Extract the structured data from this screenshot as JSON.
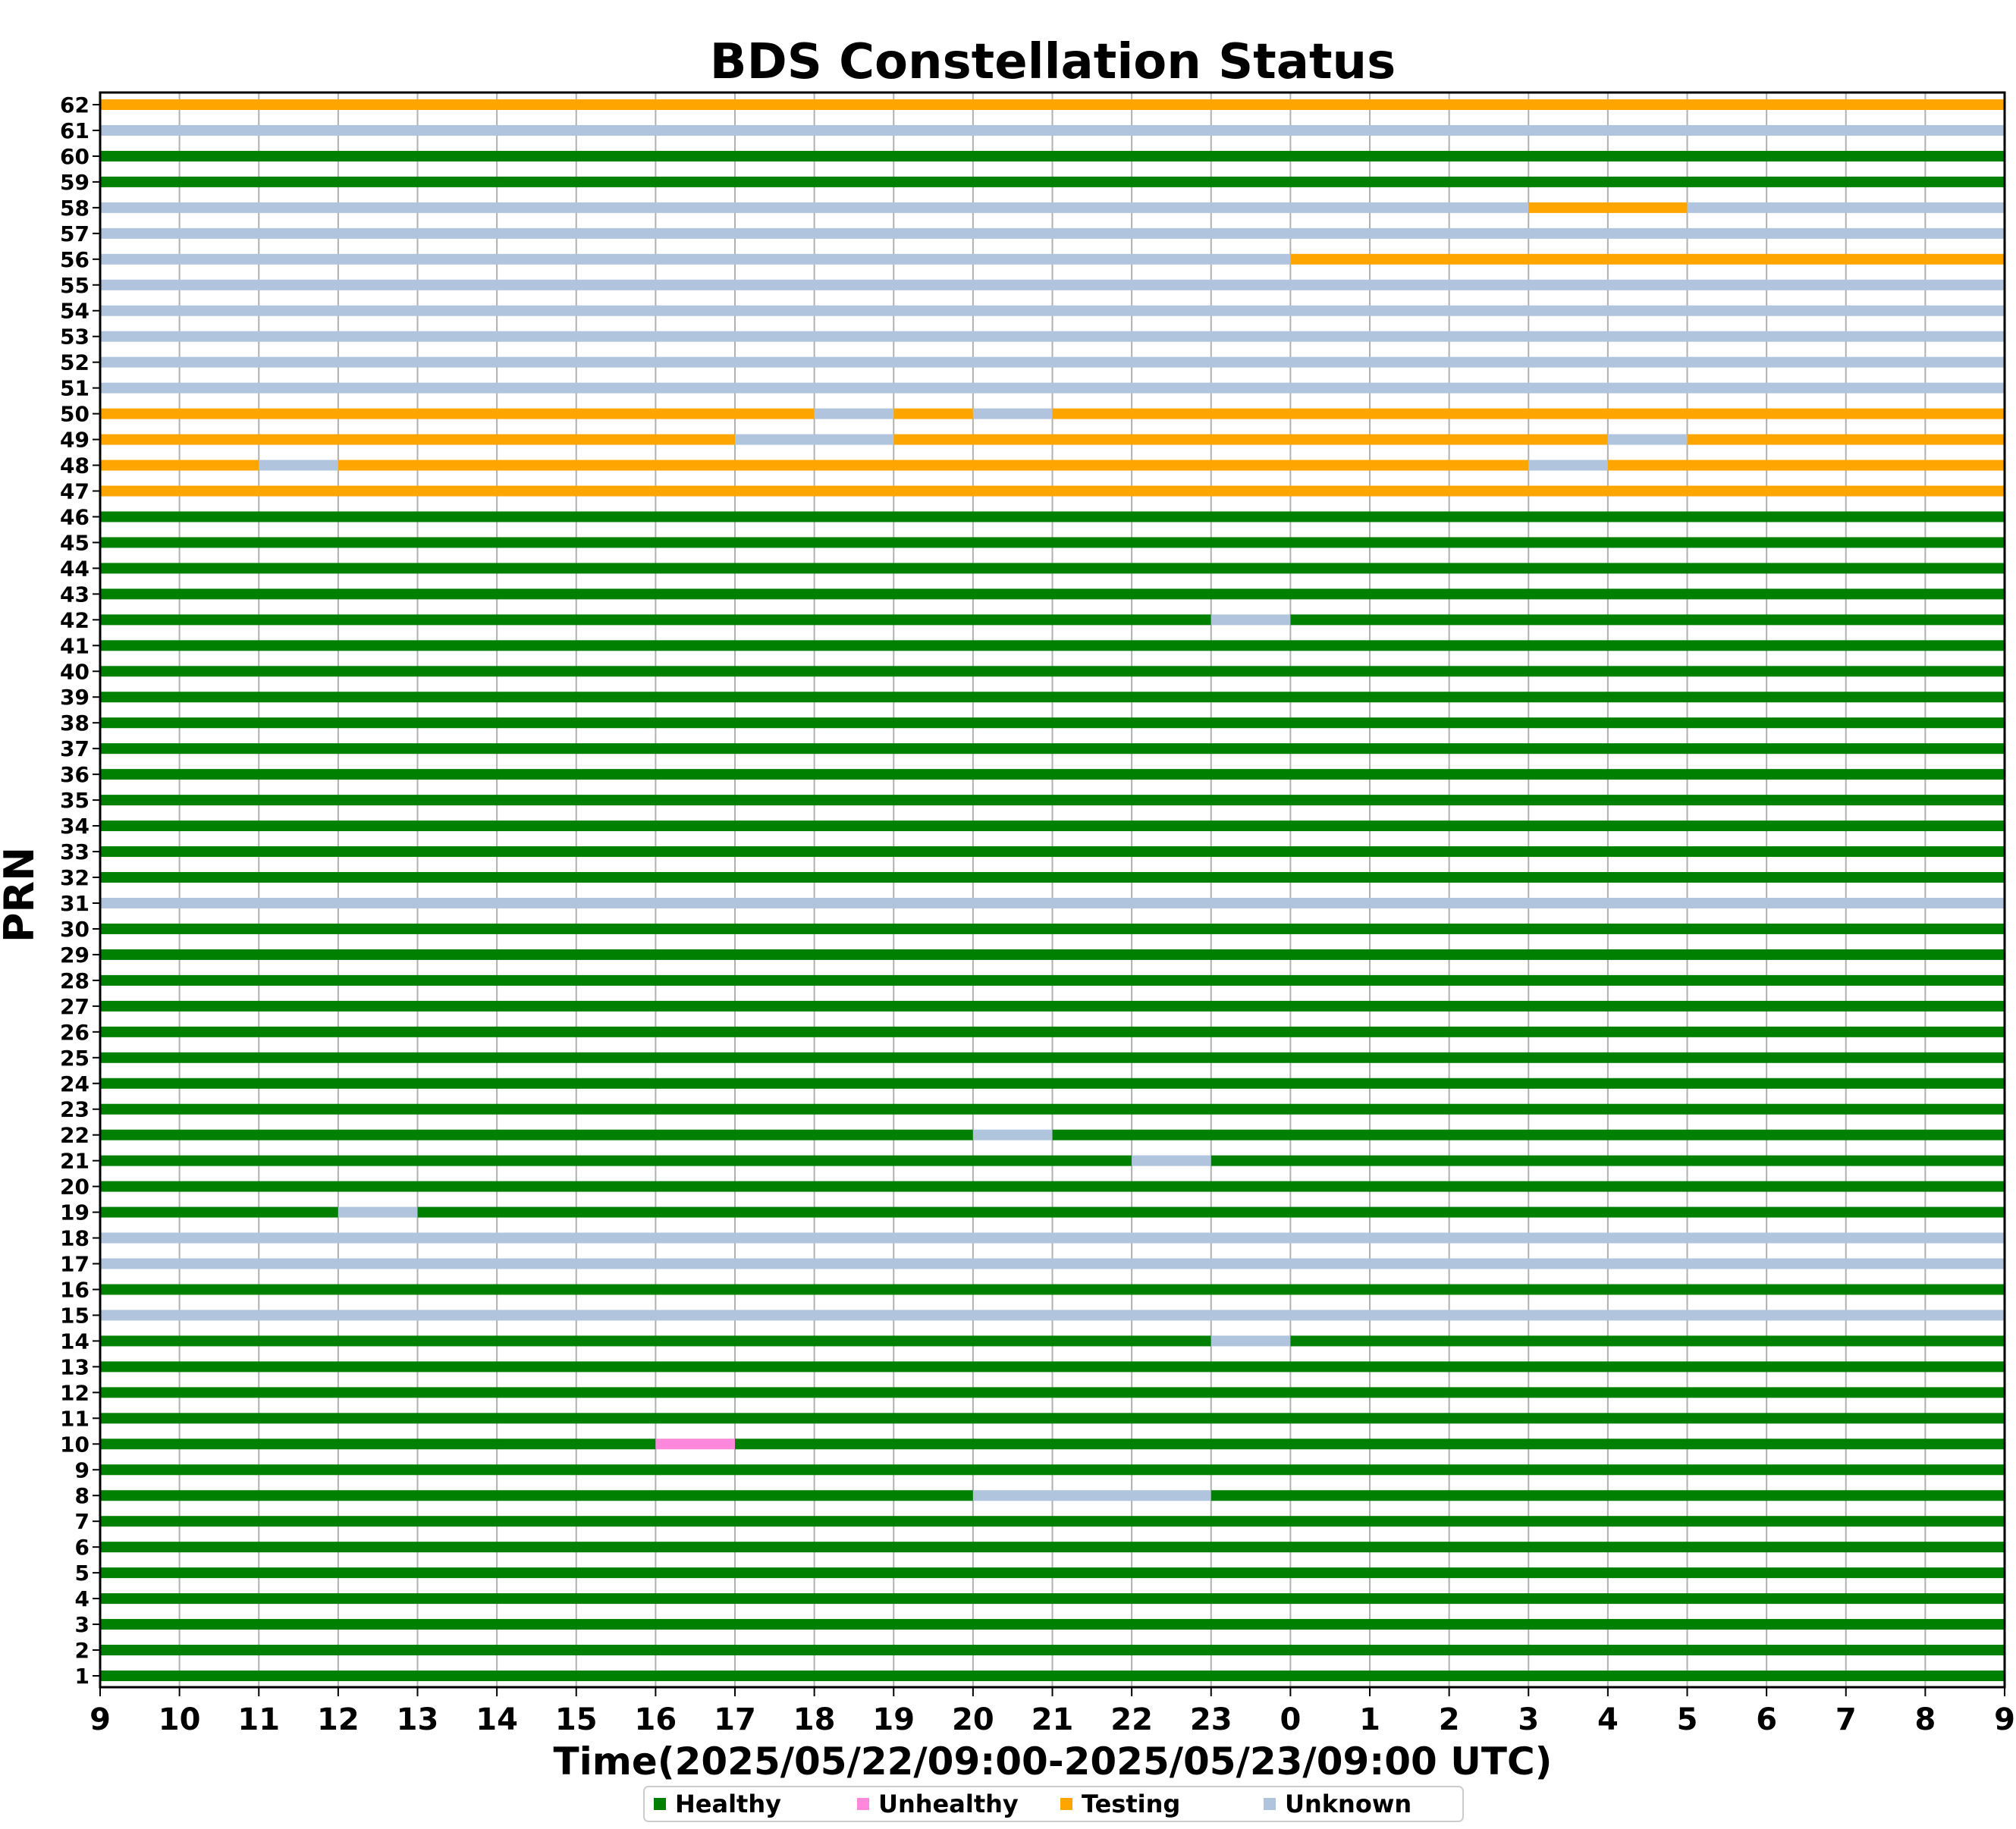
{
  "chart_data": {
    "type": "timeline",
    "title": "BDS Constellation Status",
    "xlabel": "Time(2025/05/22/09:00-2025/05/23/09:00 UTC)",
    "ylabel": "PRN",
    "x_range_hours": [
      0,
      24
    ],
    "x_tick_labels": [
      "9",
      "10",
      "11",
      "12",
      "13",
      "14",
      "15",
      "16",
      "17",
      "18",
      "19",
      "20",
      "21",
      "22",
      "23",
      "0",
      "1",
      "2",
      "3",
      "4",
      "5",
      "6",
      "7",
      "8",
      "9"
    ],
    "prn_range": [
      1,
      62
    ],
    "grid": "vertical",
    "legend_position": "bottom-center",
    "statuses": [
      {
        "name": "Healthy",
        "color": "#008000"
      },
      {
        "name": "Unhealthy",
        "color": "#ff88dd"
      },
      {
        "name": "Testing",
        "color": "#ffa500"
      },
      {
        "name": "Unknown",
        "color": "#b0c4de"
      }
    ],
    "default_status": "Healthy",
    "rows": [
      {
        "prn": 62,
        "segments": [
          [
            0,
            24,
            "Testing"
          ]
        ]
      },
      {
        "prn": 61,
        "segments": [
          [
            0,
            24,
            "Unknown"
          ]
        ]
      },
      {
        "prn": 58,
        "segments": [
          [
            0,
            18,
            "Unknown"
          ],
          [
            18,
            20,
            "Testing"
          ],
          [
            20,
            24,
            "Unknown"
          ]
        ]
      },
      {
        "prn": 57,
        "segments": [
          [
            0,
            24,
            "Unknown"
          ]
        ]
      },
      {
        "prn": 56,
        "segments": [
          [
            0,
            15,
            "Unknown"
          ],
          [
            15,
            24,
            "Testing"
          ]
        ]
      },
      {
        "prn": 55,
        "segments": [
          [
            0,
            24,
            "Unknown"
          ]
        ]
      },
      {
        "prn": 54,
        "segments": [
          [
            0,
            24,
            "Unknown"
          ]
        ]
      },
      {
        "prn": 53,
        "segments": [
          [
            0,
            24,
            "Unknown"
          ]
        ]
      },
      {
        "prn": 52,
        "segments": [
          [
            0,
            24,
            "Unknown"
          ]
        ]
      },
      {
        "prn": 51,
        "segments": [
          [
            0,
            24,
            "Unknown"
          ]
        ]
      },
      {
        "prn": 50,
        "segments": [
          [
            0,
            9,
            "Testing"
          ],
          [
            9,
            10,
            "Unknown"
          ],
          [
            10,
            11,
            "Testing"
          ],
          [
            11,
            12,
            "Unknown"
          ],
          [
            12,
            24,
            "Testing"
          ]
        ]
      },
      {
        "prn": 49,
        "segments": [
          [
            0,
            8,
            "Testing"
          ],
          [
            8,
            10,
            "Unknown"
          ],
          [
            10,
            19,
            "Testing"
          ],
          [
            19,
            20,
            "Unknown"
          ],
          [
            20,
            24,
            "Testing"
          ]
        ]
      },
      {
        "prn": 48,
        "segments": [
          [
            0,
            2,
            "Testing"
          ],
          [
            2,
            3,
            "Unknown"
          ],
          [
            3,
            18,
            "Testing"
          ],
          [
            18,
            19,
            "Unknown"
          ],
          [
            19,
            24,
            "Testing"
          ]
        ]
      },
      {
        "prn": 47,
        "segments": [
          [
            0,
            24,
            "Testing"
          ]
        ]
      },
      {
        "prn": 42,
        "segments": [
          [
            0,
            14,
            "Healthy"
          ],
          [
            14,
            15,
            "Unknown"
          ],
          [
            15,
            24,
            "Healthy"
          ]
        ]
      },
      {
        "prn": 31,
        "segments": [
          [
            0,
            24,
            "Unknown"
          ]
        ]
      },
      {
        "prn": 22,
        "segments": [
          [
            0,
            11,
            "Healthy"
          ],
          [
            11,
            12,
            "Unknown"
          ],
          [
            12,
            24,
            "Healthy"
          ]
        ]
      },
      {
        "prn": 21,
        "segments": [
          [
            0,
            13,
            "Healthy"
          ],
          [
            13,
            14,
            "Unknown"
          ],
          [
            14,
            24,
            "Healthy"
          ]
        ]
      },
      {
        "prn": 19,
        "segments": [
          [
            0,
            3,
            "Healthy"
          ],
          [
            3,
            4,
            "Unknown"
          ],
          [
            4,
            24,
            "Healthy"
          ]
        ]
      },
      {
        "prn": 18,
        "segments": [
          [
            0,
            24,
            "Unknown"
          ]
        ]
      },
      {
        "prn": 17,
        "segments": [
          [
            0,
            24,
            "Unknown"
          ]
        ]
      },
      {
        "prn": 15,
        "segments": [
          [
            0,
            24,
            "Unknown"
          ]
        ]
      },
      {
        "prn": 14,
        "segments": [
          [
            0,
            14,
            "Healthy"
          ],
          [
            14,
            15,
            "Unknown"
          ],
          [
            15,
            24,
            "Healthy"
          ]
        ]
      },
      {
        "prn": 10,
        "segments": [
          [
            0,
            7,
            "Healthy"
          ],
          [
            7,
            8,
            "Unhealthy"
          ],
          [
            8,
            24,
            "Healthy"
          ]
        ]
      },
      {
        "prn": 8,
        "segments": [
          [
            0,
            11,
            "Healthy"
          ],
          [
            11,
            14,
            "Unknown"
          ],
          [
            14,
            24,
            "Healthy"
          ]
        ]
      }
    ]
  }
}
